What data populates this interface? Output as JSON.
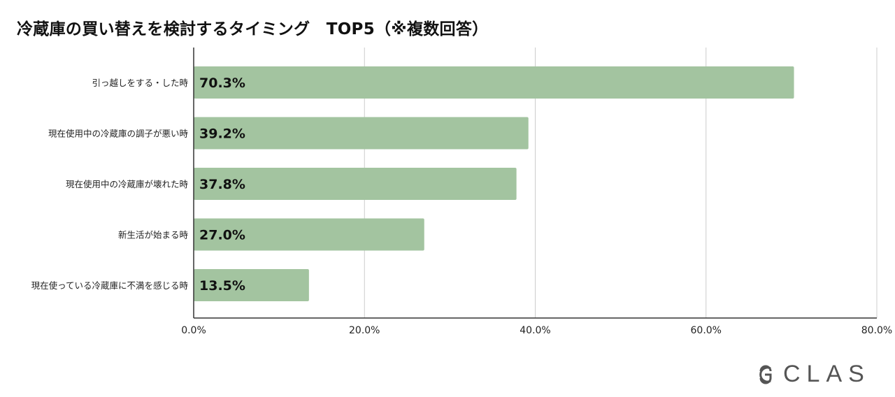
{
  "chart_data": {
    "type": "bar",
    "orientation": "horizontal",
    "title": "冷蔵庫の買い替えを検討するタイミング　TOP5（※複数回答）",
    "categories": [
      "引っ越しをする・した時",
      "現在使用中の冷蔵庫の調子が悪い時",
      "現在使用中の冷蔵庫が壊れた時",
      "新生活が始まる時",
      "現在使っている冷蔵庫に不満を感じる時"
    ],
    "values": [
      70.3,
      39.2,
      37.8,
      27.0,
      13.5
    ],
    "data_labels": [
      "70.3%",
      "39.2%",
      "37.8%",
      "27.0%",
      "13.5%"
    ],
    "xlim": [
      0,
      80
    ],
    "xticks": [
      0,
      20,
      40,
      60,
      80
    ],
    "xtick_labels": [
      "0.0%",
      "20.0%",
      "40.0%",
      "60.0%",
      "80.0%"
    ],
    "grid": "vertical",
    "bar_color": "#a3c4a0",
    "xlabel": "",
    "ylabel": ""
  },
  "logo": {
    "text": "CLAS"
  }
}
